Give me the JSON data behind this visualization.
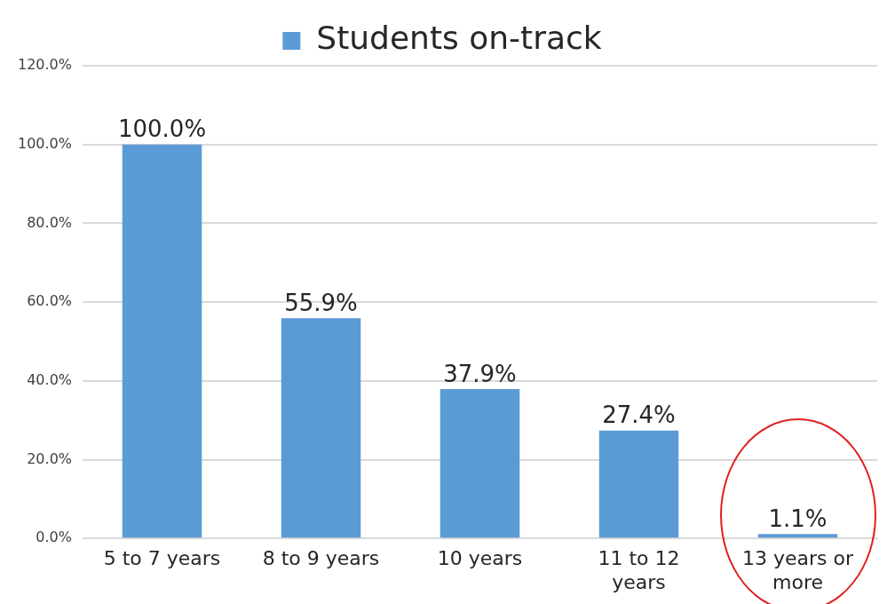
{
  "chart_data": {
    "type": "bar",
    "categories": [
      "5 to 7 years",
      "8 to 9 years",
      "10 years",
      "11 to 12 years",
      "13 years or more"
    ],
    "series": [
      {
        "name": "Students on-track",
        "color": "#5b9bd5",
        "values": [
          100.0,
          55.9,
          37.9,
          27.4,
          1.1
        ],
        "value_labels": [
          "100.0%",
          "55.9%",
          "37.9%",
          "27.4%",
          "1.1%"
        ]
      }
    ],
    "ylim": [
      0,
      120
    ],
    "yticks": [
      {
        "value": 0,
        "label": "0.0%"
      },
      {
        "value": 20,
        "label": "20.0%"
      },
      {
        "value": 40,
        "label": "40.0%"
      },
      {
        "value": 60,
        "label": "60.0%"
      },
      {
        "value": 80,
        "label": "80.0%"
      },
      {
        "value": 100,
        "label": "100.0%"
      },
      {
        "value": 120,
        "label": "120.0%"
      }
    ],
    "grid": "y",
    "legend": "top"
  }
}
